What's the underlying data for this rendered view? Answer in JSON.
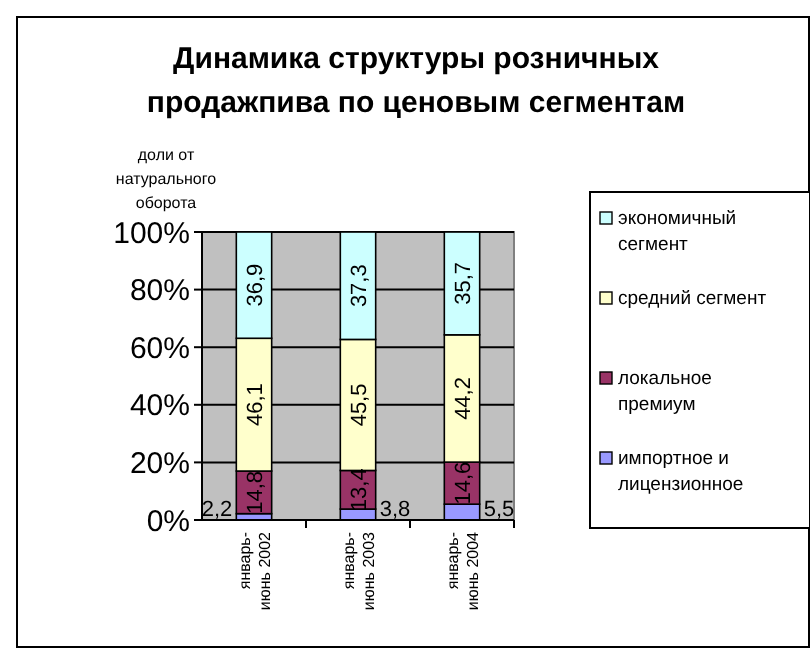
{
  "chart_data": {
    "type": "bar",
    "title": "Динамика структуры розничных продажпива по ценовым сегментам",
    "ylabel": "доли от натурального оборота",
    "categories": [
      "январь-июнь 2002",
      "январь-июнь 2003",
      "январь-июнь 2004"
    ],
    "stacked": true,
    "series": [
      {
        "name": "импортное и лицензионное",
        "color": "#9999ff",
        "values": [
          2.2,
          3.8,
          5.5
        ],
        "value_labels": [
          "2,2",
          "3,8",
          "5,5"
        ]
      },
      {
        "name": "локальное премиум",
        "color": "#993366",
        "values": [
          14.8,
          13.4,
          14.6
        ],
        "value_labels": [
          "14,8",
          "13,4",
          "14,6"
        ]
      },
      {
        "name": "средний сегмент",
        "color": "#ffffcc",
        "values": [
          46.1,
          45.5,
          44.2
        ],
        "value_labels": [
          "46,1",
          "45,5",
          "44,2"
        ]
      },
      {
        "name": "экономичный сегмент",
        "color": "#ccffff",
        "values": [
          36.9,
          37.3,
          35.7
        ],
        "value_labels": [
          "36,9",
          "37,3",
          "35,7"
        ]
      }
    ],
    "ylim": [
      0,
      100
    ],
    "yticks": [
      {
        "value": 0,
        "label": "0%"
      },
      {
        "value": 20,
        "label": "20%"
      },
      {
        "value": 40,
        "label": "40%"
      },
      {
        "value": 60,
        "label": "60%"
      },
      {
        "value": 80,
        "label": "80%"
      },
      {
        "value": 100,
        "label": "100%"
      }
    ],
    "grid": "y",
    "legend": "right"
  }
}
